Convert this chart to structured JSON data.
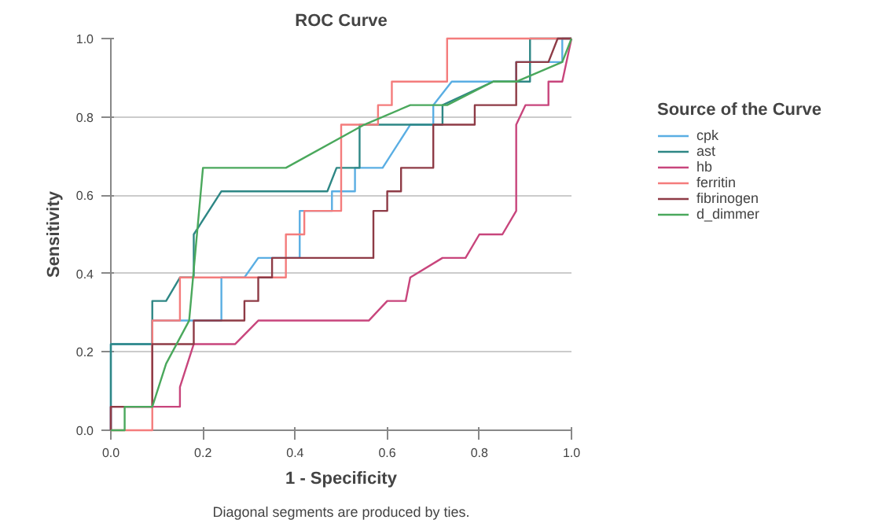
{
  "chart_data": {
    "type": "line",
    "title": "ROC Curve",
    "xlabel": "1 - Specificity",
    "ylabel": "Sensitivity",
    "legend_title": "Source of the Curve",
    "legend": "right",
    "grid": "y",
    "marker": "none",
    "line_style": "solid",
    "xlim": [
      0,
      1
    ],
    "ylim": [
      0,
      1
    ],
    "xticks": [
      {
        "value": 0,
        "label": "0.0"
      },
      {
        "value": 0.2,
        "label": "0.2"
      },
      {
        "value": 0.4,
        "label": "0.4"
      },
      {
        "value": 0.6,
        "label": "0.6"
      },
      {
        "value": 0.8,
        "label": "0.8"
      },
      {
        "value": 1,
        "label": "1.0"
      }
    ],
    "yticks": [
      {
        "value": 0,
        "label": "0.0"
      },
      {
        "value": 0.2,
        "label": "0.2"
      },
      {
        "value": 0.4,
        "label": "0.4"
      },
      {
        "value": 0.6,
        "label": "0.6"
      },
      {
        "value": 0.8,
        "label": "0.8"
      },
      {
        "value": 1,
        "label": "1.0"
      }
    ],
    "annotations": [
      "Diagonal segments are produced by ties."
    ],
    "series": [
      {
        "name": "cpk",
        "color": "#5aaee3",
        "x": [
          0,
          0,
          0.09,
          0.09,
          0.24,
          0.24,
          0.29,
          0.32,
          0.41,
          0.41,
          0.48,
          0.48,
          0.53,
          0.53,
          0.59,
          0.65,
          0.7,
          0.7,
          0.74,
          0.88,
          0.88,
          0.98,
          0.98,
          1
        ],
        "values": [
          0,
          0.22,
          0.22,
          0.28,
          0.28,
          0.39,
          0.39,
          0.44,
          0.44,
          0.56,
          0.56,
          0.61,
          0.61,
          0.67,
          0.67,
          0.78,
          0.78,
          0.83,
          0.89,
          0.89,
          0.94,
          0.94,
          1,
          1
        ]
      },
      {
        "name": "ast",
        "color": "#2e8785",
        "x": [
          0,
          0,
          0.09,
          0.09,
          0.12,
          0.15,
          0.18,
          0.18,
          0.24,
          0.47,
          0.49,
          0.54,
          0.54,
          0.72,
          0.72,
          0.83,
          0.91,
          0.91,
          1
        ],
        "values": [
          0,
          0.22,
          0.22,
          0.33,
          0.33,
          0.39,
          0.39,
          0.5,
          0.61,
          0.61,
          0.67,
          0.67,
          0.78,
          0.78,
          0.83,
          0.89,
          0.89,
          1,
          1
        ]
      },
      {
        "name": "hb",
        "color": "#c8457c",
        "x": [
          0,
          0,
          0.15,
          0.15,
          0.18,
          0.27,
          0.32,
          0.56,
          0.6,
          0.64,
          0.65,
          0.72,
          0.77,
          0.8,
          0.85,
          0.88,
          0.88,
          0.9,
          0.95,
          0.95,
          0.98,
          1
        ],
        "values": [
          0,
          0.06,
          0.06,
          0.11,
          0.22,
          0.22,
          0.28,
          0.28,
          0.33,
          0.33,
          0.39,
          0.44,
          0.44,
          0.5,
          0.5,
          0.56,
          0.78,
          0.83,
          0.83,
          0.89,
          0.89,
          1
        ]
      },
      {
        "name": "ferritin",
        "color": "#f47c7c",
        "x": [
          0,
          0.09,
          0.09,
          0.15,
          0.15,
          0.38,
          0.38,
          0.42,
          0.42,
          0.5,
          0.5,
          0.58,
          0.58,
          0.61,
          0.61,
          0.73,
          0.73,
          1
        ],
        "values": [
          0,
          0,
          0.28,
          0.28,
          0.39,
          0.39,
          0.5,
          0.5,
          0.56,
          0.56,
          0.78,
          0.78,
          0.83,
          0.83,
          0.89,
          0.89,
          1,
          1
        ]
      },
      {
        "name": "fibrinogen",
        "color": "#8e3b46",
        "x": [
          0,
          0,
          0.09,
          0.09,
          0.18,
          0.18,
          0.29,
          0.29,
          0.32,
          0.32,
          0.35,
          0.35,
          0.57,
          0.57,
          0.6,
          0.6,
          0.63,
          0.63,
          0.7,
          0.7,
          0.79,
          0.79,
          0.88,
          0.88,
          0.95,
          0.97,
          1
        ],
        "values": [
          0,
          0.06,
          0.06,
          0.22,
          0.22,
          0.28,
          0.28,
          0.33,
          0.33,
          0.39,
          0.39,
          0.44,
          0.44,
          0.56,
          0.56,
          0.61,
          0.61,
          0.67,
          0.67,
          0.78,
          0.78,
          0.83,
          0.83,
          0.94,
          0.94,
          1,
          1
        ]
      },
      {
        "name": "d_dimmer",
        "color": "#4aa85c",
        "x": [
          0,
          0.03,
          0.03,
          0.09,
          0.12,
          0.17,
          0.2,
          0.38,
          0.55,
          0.65,
          0.73,
          0.83,
          0.88,
          0.98,
          1
        ],
        "values": [
          0,
          0,
          0.06,
          0.06,
          0.17,
          0.28,
          0.67,
          0.67,
          0.78,
          0.83,
          0.83,
          0.89,
          0.89,
          0.94,
          1
        ]
      }
    ]
  }
}
